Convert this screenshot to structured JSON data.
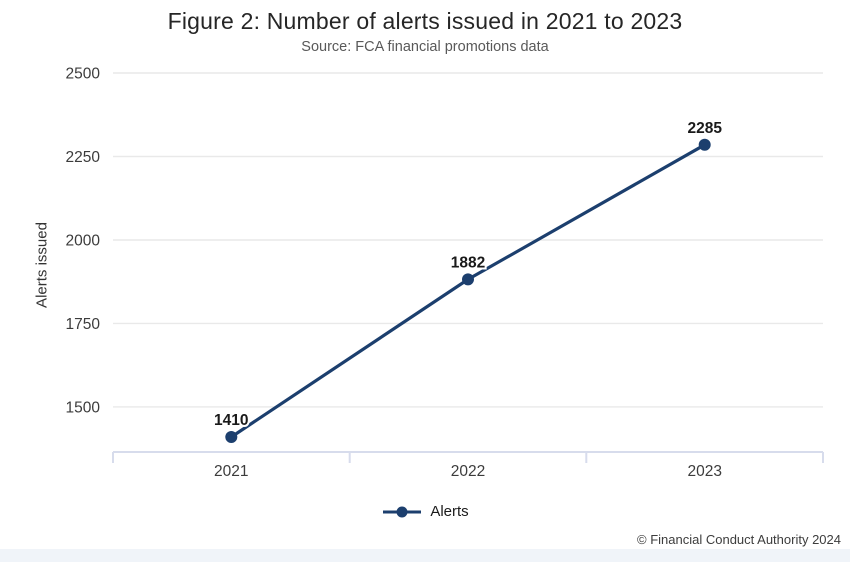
{
  "chart_data": {
    "type": "line",
    "title": "Figure 2: Number of alerts issued in 2021 to 2023",
    "subtitle": "Source: FCA financial promotions data",
    "ylabel": "Alerts issued",
    "xlabel": "",
    "categories": [
      "2021",
      "2022",
      "2023"
    ],
    "series": [
      {
        "name": "Alerts",
        "values": [
          1410,
          1882,
          2285
        ]
      }
    ],
    "yticks": [
      1500,
      1750,
      2000,
      2250,
      2500
    ],
    "ylim": [
      1365,
      2500
    ],
    "grid": true,
    "legend_position": "bottom",
    "colors": {
      "line": "#1c3f6e",
      "grid": "#e9e9e9",
      "axis": "#d7dcec",
      "data_label": "#1a1a1a",
      "tick_label": "#3c3c3c"
    }
  },
  "footer": {
    "copyright": "© Financial Conduct Authority 2024"
  }
}
